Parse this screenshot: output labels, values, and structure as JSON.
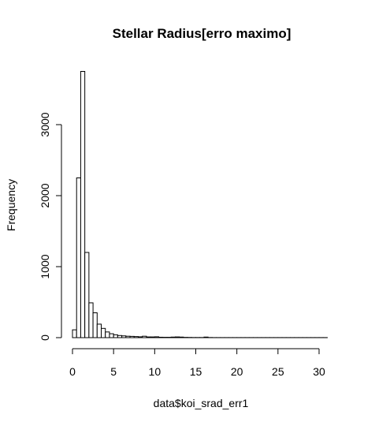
{
  "chart_data": {
    "type": "bar",
    "title": "Stellar Radius[erro maximo]",
    "xlabel": "data$koi_srad_err1",
    "ylabel": "Frequency",
    "xlim": [
      0,
      31
    ],
    "ylim": [
      0,
      3750
    ],
    "bin_width": 0.5,
    "bin_start": 0,
    "x_ticks": [
      0,
      5,
      10,
      15,
      20,
      25,
      30
    ],
    "y_ticks": [
      0,
      1000,
      2000,
      3000
    ],
    "x_tick_labels": [
      "0",
      "5",
      "10",
      "15",
      "20",
      "25",
      "30"
    ],
    "y_tick_labels": [
      "0",
      "1000",
      "2000",
      "3000"
    ],
    "grid": false,
    "values": [
      110,
      2250,
      3750,
      1200,
      490,
      350,
      190,
      130,
      80,
      55,
      40,
      30,
      25,
      20,
      18,
      15,
      12,
      20,
      10,
      10,
      12,
      6,
      5,
      5,
      8,
      10,
      8,
      4,
      3,
      2,
      2,
      2,
      8,
      2,
      1,
      1,
      1,
      1,
      1,
      1,
      1,
      1,
      1,
      1,
      1,
      1,
      1,
      1,
      1,
      1,
      1,
      1,
      1,
      1,
      1,
      1,
      1,
      1,
      1,
      1,
      1,
      1
    ]
  }
}
